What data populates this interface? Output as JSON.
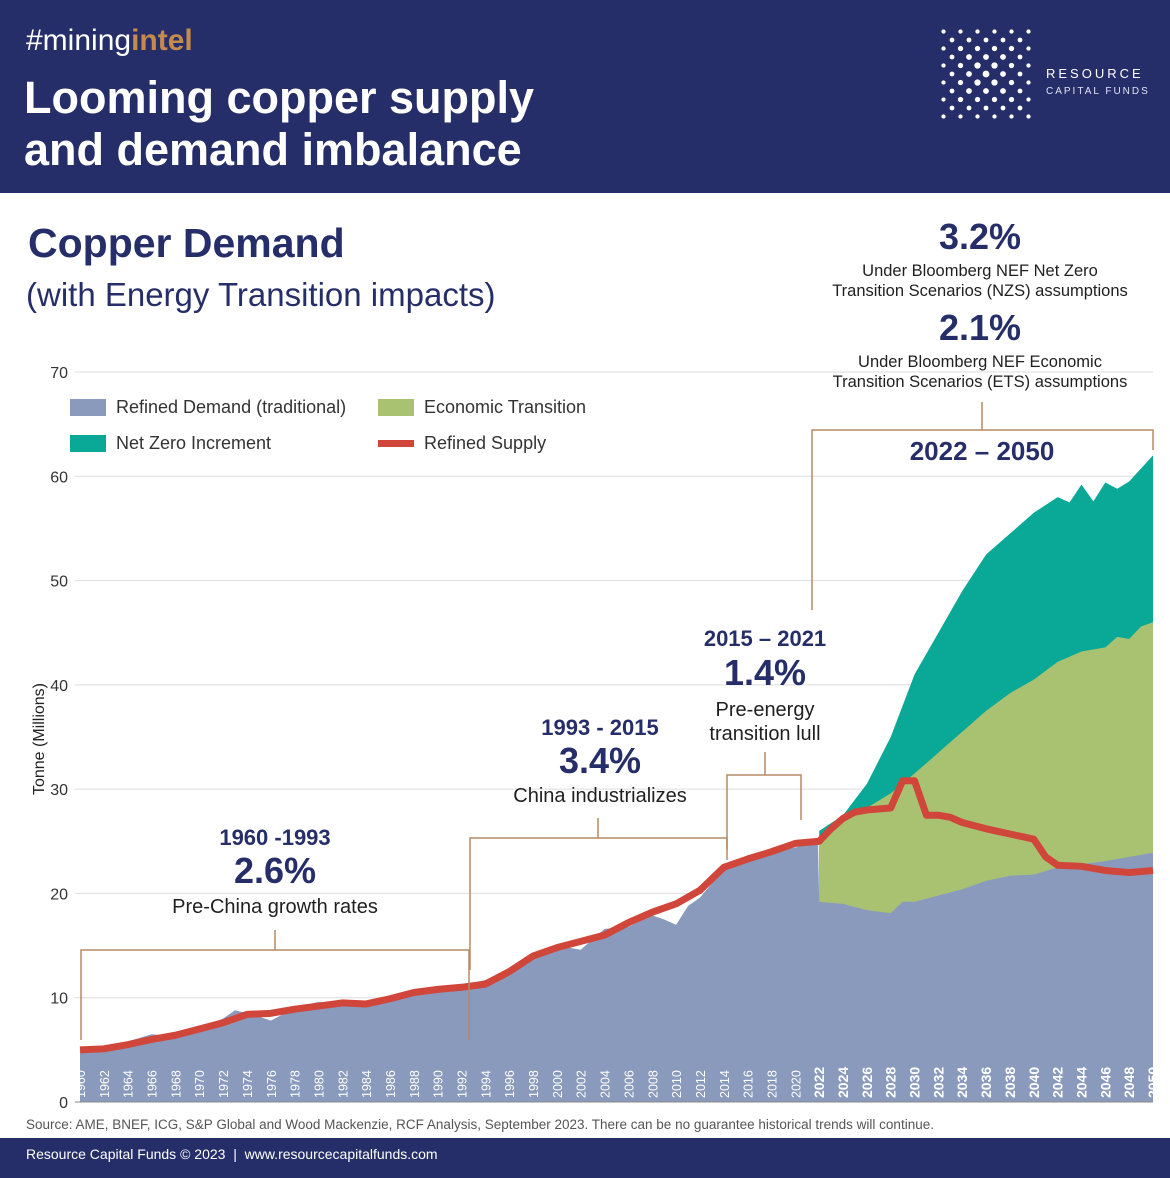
{
  "header": {
    "tag_prefix": "#mining",
    "tag_accent": "intel",
    "title": "Looming copper supply and demand imbalance",
    "logo_line1": "RESOURCE",
    "logo_line2": "CAPITAL FUNDS"
  },
  "chart_title": "Copper Demand",
  "chart_subtitle": "(with Energy Transition impacts)",
  "annotations": {
    "nzs_pct": "3.2%",
    "nzs_text1": "Under Bloomberg NEF Net Zero",
    "nzs_text2": "Transition Scenarios (NZS) assumptions",
    "ets_pct": "2.1%",
    "ets_text1": "Under Bloomberg NEF Economic",
    "ets_text2": "Transition Scenarios (ETS) assumptions",
    "p4_range": "2022 – 2050",
    "p3_range": "2015 – 2021",
    "p3_pct": "1.4%",
    "p3_text1": "Pre-energy",
    "p3_text2": "transition lull",
    "p2_range": "1993 - 2015",
    "p2_pct": "3.4%",
    "p2_text": "China industrializes",
    "p1_range": "1960 -1993",
    "p1_pct": "2.6%",
    "p1_text": "Pre-China growth rates"
  },
  "source": "Source: AME, BNEF, ICG, S&P Global and Wood Mackenzie, RCF Analysis, September 2023.  There can be no guarantee historical trends will continue.",
  "footer": "Resource Capital Funds © 2023  |  www.resourcecapitalfunds.com",
  "colors": {
    "header": "#252e68",
    "traditional": "#8a9abd",
    "economic": "#a9c272",
    "netzero": "#0aa896",
    "supply": "#d0463a"
  },
  "chart_data": {
    "type": "area",
    "xlabel": "",
    "ylabel": "Tonne (Millions)",
    "ylim": [
      0,
      70
    ],
    "xlim": [
      1960,
      2050
    ],
    "yticks": [
      0,
      10,
      20,
      30,
      40,
      50,
      60,
      70
    ],
    "xticks_step": 2,
    "legend_placement": "top-left",
    "legend": [
      "Refined Demand (traditional)",
      "Economic Transition",
      "Net Zero Increment",
      "Refined Supply"
    ],
    "series": [
      {
        "name": "Net Zero Increment",
        "type": "area",
        "points": [
          [
            2022,
            26
          ],
          [
            2024,
            27.5
          ],
          [
            2026,
            30.5
          ],
          [
            2028,
            35
          ],
          [
            2030,
            41
          ],
          [
            2032,
            45
          ],
          [
            2034,
            49
          ],
          [
            2036,
            52.5
          ],
          [
            2038,
            54.5
          ],
          [
            2040,
            56.5
          ],
          [
            2042,
            58
          ],
          [
            2043,
            57.5
          ],
          [
            2044,
            59.2
          ],
          [
            2045,
            57.6
          ],
          [
            2046,
            59.4
          ],
          [
            2047,
            58.8
          ],
          [
            2048,
            59.5
          ],
          [
            2050,
            62
          ]
        ]
      },
      {
        "name": "Economic Transition",
        "type": "area",
        "points": [
          [
            2022,
            25.5
          ],
          [
            2024,
            27
          ],
          [
            2026,
            28.2
          ],
          [
            2028,
            29.6
          ],
          [
            2030,
            31.5
          ],
          [
            2032,
            33.5
          ],
          [
            2034,
            35.5
          ],
          [
            2036,
            37.5
          ],
          [
            2038,
            39.2
          ],
          [
            2040,
            40.5
          ],
          [
            2042,
            42.2
          ],
          [
            2044,
            43.2
          ],
          [
            2046,
            43.6
          ],
          [
            2047,
            44.6
          ],
          [
            2048,
            44.4
          ],
          [
            2049,
            45.6
          ],
          [
            2050,
            46
          ]
        ]
      },
      {
        "name": "Refined Demand (traditional)",
        "type": "area",
        "points": [
          [
            1960,
            4.7
          ],
          [
            1962,
            4.8
          ],
          [
            1964,
            5.8
          ],
          [
            1966,
            6.5
          ],
          [
            1968,
            6.3
          ],
          [
            1970,
            7.1
          ],
          [
            1972,
            8.0
          ],
          [
            1973,
            8.8
          ],
          [
            1975,
            8.2
          ],
          [
            1976,
            7.8
          ],
          [
            1978,
            9.0
          ],
          [
            1980,
            9.6
          ],
          [
            1982,
            9.2
          ],
          [
            1984,
            9.6
          ],
          [
            1986,
            9.8
          ],
          [
            1988,
            10.5
          ],
          [
            1990,
            10.8
          ],
          [
            1992,
            11.2
          ],
          [
            1994,
            11.7
          ],
          [
            1996,
            12.6
          ],
          [
            1998,
            14.2
          ],
          [
            2000,
            15.0
          ],
          [
            2002,
            14.6
          ],
          [
            2004,
            16.6
          ],
          [
            2006,
            16.8
          ],
          [
            2008,
            17.9
          ],
          [
            2009,
            17.5
          ],
          [
            2010,
            17.0
          ],
          [
            2011,
            18.8
          ],
          [
            2012,
            19.6
          ],
          [
            2014,
            22.3
          ],
          [
            2016,
            23.0
          ],
          [
            2018,
            23.9
          ],
          [
            2020,
            24.4
          ],
          [
            2021.9,
            25.0
          ],
          [
            2022,
            19.2
          ],
          [
            2024,
            19.0
          ],
          [
            2026,
            18.4
          ],
          [
            2028,
            18.1
          ],
          [
            2029,
            19.2
          ],
          [
            2030,
            19.2
          ],
          [
            2032,
            19.8
          ],
          [
            2034,
            20.4
          ],
          [
            2036,
            21.2
          ],
          [
            2038,
            21.7
          ],
          [
            2040,
            21.8
          ],
          [
            2042,
            22.5
          ],
          [
            2044,
            22.8
          ],
          [
            2046,
            23.1
          ],
          [
            2048,
            23.5
          ],
          [
            2050,
            23.9
          ]
        ]
      },
      {
        "name": "Refined Supply",
        "type": "line",
        "points": [
          [
            1960,
            5.0
          ],
          [
            1962,
            5.1
          ],
          [
            1964,
            5.5
          ],
          [
            1966,
            6.0
          ],
          [
            1968,
            6.4
          ],
          [
            1970,
            7.0
          ],
          [
            1972,
            7.6
          ],
          [
            1974,
            8.4
          ],
          [
            1976,
            8.5
          ],
          [
            1978,
            8.9
          ],
          [
            1980,
            9.2
          ],
          [
            1982,
            9.5
          ],
          [
            1984,
            9.4
          ],
          [
            1986,
            9.9
          ],
          [
            1988,
            10.5
          ],
          [
            1990,
            10.8
          ],
          [
            1992,
            11.0
          ],
          [
            1994,
            11.3
          ],
          [
            1996,
            12.5
          ],
          [
            1998,
            14.0
          ],
          [
            2000,
            14.8
          ],
          [
            2002,
            15.4
          ],
          [
            2004,
            16.0
          ],
          [
            2006,
            17.2
          ],
          [
            2008,
            18.2
          ],
          [
            2010,
            19.0
          ],
          [
            2012,
            20.3
          ],
          [
            2014,
            22.5
          ],
          [
            2016,
            23.3
          ],
          [
            2018,
            24.0
          ],
          [
            2020,
            24.8
          ],
          [
            2022,
            25.0
          ],
          [
            2023,
            26.2
          ],
          [
            2024,
            27.2
          ],
          [
            2025,
            27.8
          ],
          [
            2026,
            28.0
          ],
          [
            2028,
            28.2
          ],
          [
            2029,
            30.8
          ],
          [
            2030,
            30.8
          ],
          [
            2031,
            27.5
          ],
          [
            2032,
            27.5
          ],
          [
            2033,
            27.3
          ],
          [
            2034,
            26.8
          ],
          [
            2036,
            26.2
          ],
          [
            2038,
            25.7
          ],
          [
            2040,
            25.2
          ],
          [
            2041,
            23.5
          ],
          [
            2042,
            22.7
          ],
          [
            2044,
            22.6
          ],
          [
            2046,
            22.2
          ],
          [
            2048,
            22.0
          ],
          [
            2050,
            22.2
          ]
        ]
      }
    ]
  }
}
